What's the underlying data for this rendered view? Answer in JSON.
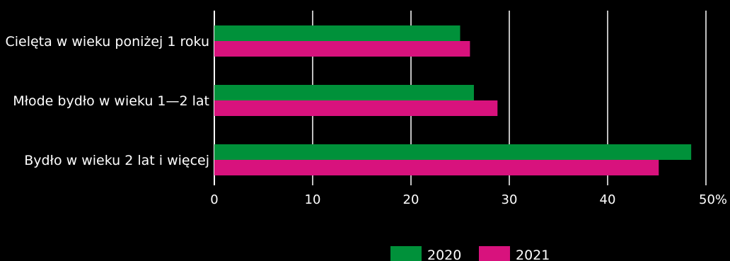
{
  "chart_data": {
    "type": "bar",
    "orientation": "horizontal",
    "categories": [
      "Cielęta w wieku poniżej 1 roku",
      "Młode bydło w wieku 1—2 lat",
      "Bydło w wieku 2 lat i więcej"
    ],
    "series": [
      {
        "name": "2020",
        "color": "#00913a",
        "values": [
          25.0,
          26.4,
          48.5
        ]
      },
      {
        "name": "2021",
        "color": "#d8127d",
        "values": [
          26.0,
          28.8,
          45.2
        ]
      }
    ],
    "x_ticks": [
      "0",
      "10",
      "20",
      "30",
      "40",
      "50%"
    ],
    "xlim": [
      0,
      50
    ],
    "grid": true,
    "gridline_color": "#ffffff",
    "legend_position": "bottom-center",
    "title": "",
    "xlabel": "",
    "ylabel": ""
  }
}
